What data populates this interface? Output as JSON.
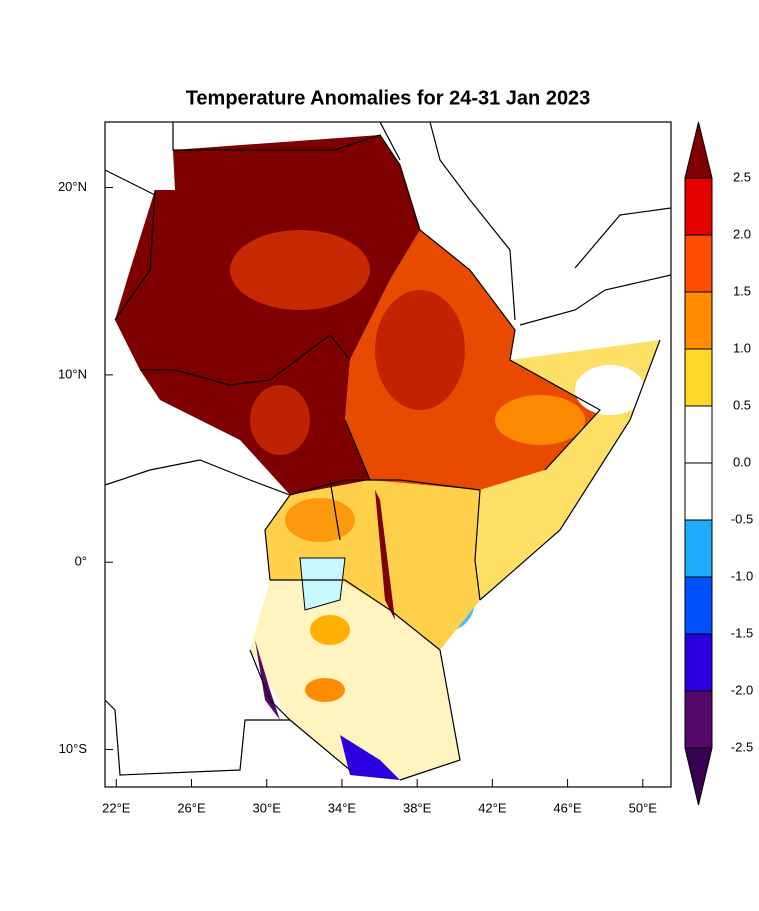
{
  "title": "Temperature Anomalies for 24-31 Jan 2023",
  "map": {
    "xlim": [
      21.4,
      51.5
    ],
    "ylim": [
      -12,
      23.5
    ],
    "xticks": [
      {
        "value": 22,
        "label": "22°E"
      },
      {
        "value": 26,
        "label": "26°E"
      },
      {
        "value": 30,
        "label": "30°E"
      },
      {
        "value": 34,
        "label": "34°E"
      },
      {
        "value": 38,
        "label": "38°E"
      },
      {
        "value": 42,
        "label": "42°E"
      },
      {
        "value": 46,
        "label": "46°E"
      },
      {
        "value": 50,
        "label": "50°E"
      }
    ],
    "yticks": [
      {
        "value": 20,
        "label": "20°N"
      },
      {
        "value": 10,
        "label": "10°N"
      },
      {
        "value": 0,
        "label": "0°"
      },
      {
        "value": -10,
        "label": "10°S"
      }
    ]
  },
  "colorbar": {
    "levels": [
      2.5,
      {
        "value": 2,
        "label": "2.0"
      },
      1.5,
      {
        "value": 1,
        "label": "1.0"
      },
      0.5,
      {
        "value": 0,
        "label": "0.0"
      },
      -0.5,
      {
        "value": -1,
        "label": "-1.0"
      },
      -1.5,
      {
        "value": -2,
        "label": "-2.0"
      },
      -2.5
    ],
    "colors": [
      "#7f0000",
      "#e60000",
      "#ff4d00",
      "#ff8c00",
      "#ffd82a",
      "#ffffff",
      "#ffffff",
      "#1eaaff",
      "#0050ff",
      "#2a00e0",
      "#55086a",
      "#3a0050"
    ]
  }
}
